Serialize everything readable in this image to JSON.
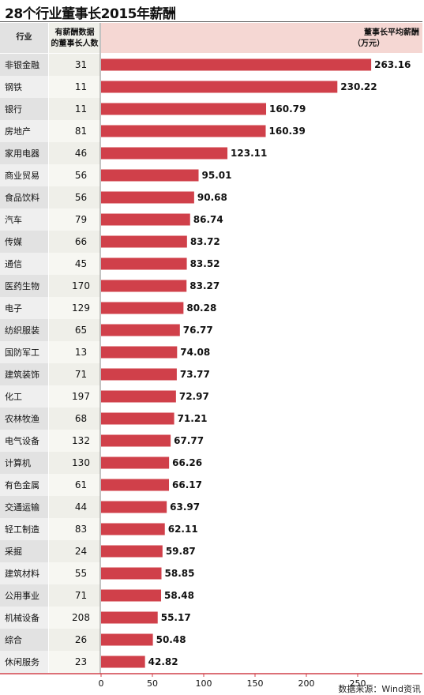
{
  "title": "28个行业董事长2015年薪酬",
  "source": "数据来源：Wind资讯",
  "columns": {
    "industry": "行业",
    "count_line1": "有薪酬数据",
    "count_line2": "的董事长人数",
    "value_line1": "董事长平均薪酬",
    "value_line2": "（万元）"
  },
  "colors": {
    "bar": "#d0404a",
    "header_bg": "#f5d7d3",
    "label_col_a": "#e2e2e2",
    "label_col_b": "#efefef",
    "count_col_a": "#efefe9",
    "count_col_b": "#f7f7f2",
    "axis": "#d0404a"
  },
  "chart_data": {
    "type": "bar",
    "orientation": "horizontal",
    "title": "28个行业董事长2015年薪酬",
    "xlim": [
      0,
      300
    ],
    "xticks": [
      0,
      50,
      100,
      150,
      200,
      250
    ],
    "categories": [
      "非银金融",
      "钢铁",
      "银行",
      "房地产",
      "家用电器",
      "商业贸易",
      "食品饮料",
      "汽车",
      "传媒",
      "通信",
      "医药生物",
      "电子",
      "纺织服装",
      "国防军工",
      "建筑装饰",
      "化工",
      "农林牧渔",
      "电气设备",
      "计算机",
      "有色金属",
      "交通运输",
      "轻工制造",
      "采掘",
      "建筑材料",
      "公用事业",
      "机械设备",
      "综合",
      "休闲服务"
    ],
    "counts": [
      31,
      11,
      11,
      81,
      46,
      56,
      56,
      79,
      66,
      45,
      170,
      129,
      65,
      13,
      71,
      197,
      68,
      132,
      130,
      61,
      44,
      83,
      24,
      55,
      71,
      208,
      26,
      23
    ],
    "values": [
      263.16,
      230.22,
      160.79,
      160.39,
      123.11,
      95.01,
      90.68,
      86.74,
      83.72,
      83.52,
      83.27,
      80.28,
      76.77,
      74.08,
      73.77,
      72.97,
      71.21,
      67.77,
      66.26,
      66.17,
      63.97,
      62.11,
      59.87,
      58.85,
      58.48,
      55.17,
      50.48,
      42.82
    ],
    "value_labels": [
      "263.16",
      "230.22",
      "160.79",
      "160.39",
      "123.11",
      "95.01",
      "90.68",
      "86.74",
      "83.72",
      "83.52",
      "83.27",
      "80.28",
      "76.77",
      "74.08",
      "73.77",
      "72.97",
      "71.21",
      "67.77",
      "66.26",
      "66.17",
      "63.97",
      "62.11",
      "59.87",
      "58.85",
      "58.48",
      "55.17",
      "50.48",
      "42.82"
    ]
  }
}
